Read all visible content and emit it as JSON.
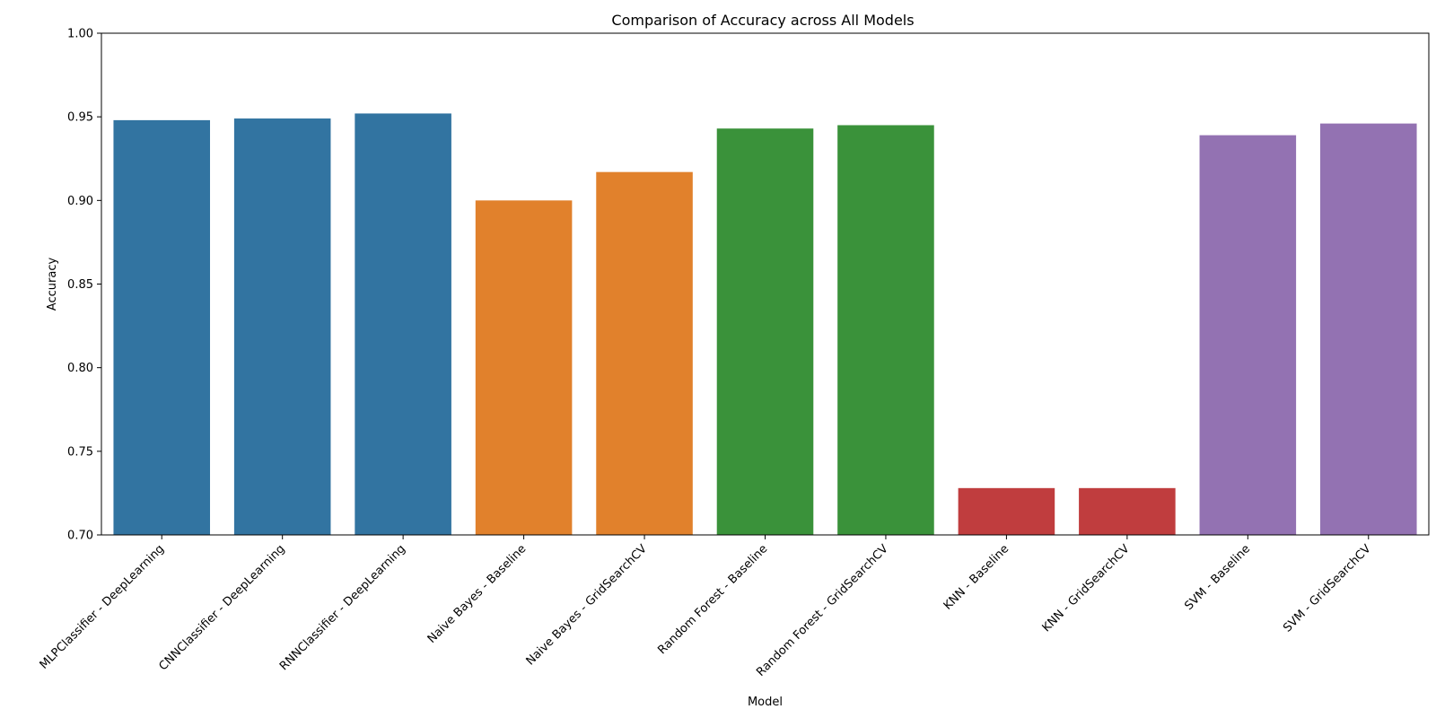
{
  "chart_data": {
    "type": "bar",
    "title": "Comparison of Accuracy across All Models",
    "xlabel": "Model",
    "ylabel": "Accuracy",
    "ylim": [
      0.7,
      1.0
    ],
    "yticks": [
      "0.70",
      "0.75",
      "0.80",
      "0.85",
      "0.90",
      "0.95",
      "1.00"
    ],
    "grid": false,
    "categories": [
      "MLPClassifier - DeepLearning",
      "CNNClassifier - DeepLearning",
      "RNNClassifier - DeepLearning",
      "Naive Bayes - Baseline",
      "Naive Bayes - GridSearchCV",
      "Random Forest - Baseline",
      "Random Forest - GridSearchCV",
      "KNN - Baseline",
      "KNN - GridSearchCV",
      "SVM - Baseline",
      "SVM - GridSearchCV"
    ],
    "values": [
      0.948,
      0.949,
      0.952,
      0.9,
      0.917,
      0.943,
      0.945,
      0.728,
      0.728,
      0.939,
      0.946
    ],
    "colors": [
      "#3274a1",
      "#3274a1",
      "#3274a1",
      "#e1812c",
      "#e1812c",
      "#3a923a",
      "#3a923a",
      "#c03d3e",
      "#c03d3e",
      "#9372b2",
      "#9372b2"
    ]
  }
}
